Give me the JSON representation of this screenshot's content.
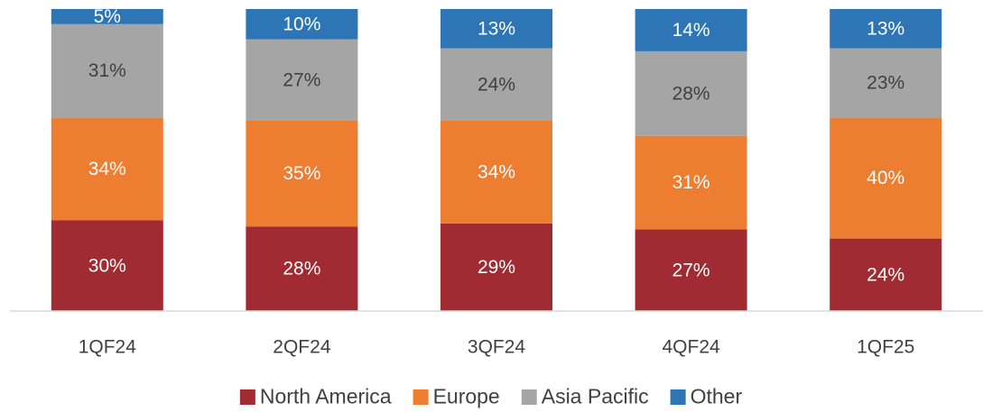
{
  "chart_data": {
    "type": "bar",
    "stacked": true,
    "categories": [
      "1QF24",
      "2QF24",
      "3QF24",
      "4QF24",
      "1QF25"
    ],
    "series": [
      {
        "name": "North America",
        "color": "#A02B33",
        "values": [
          30,
          28,
          29,
          27,
          24
        ],
        "value_labels": [
          "30%",
          "28%",
          "29%",
          "27%",
          "24%"
        ]
      },
      {
        "name": "Europe",
        "color": "#ED7D31",
        "values": [
          34,
          35,
          34,
          31,
          40
        ],
        "value_labels": [
          "34%",
          "35%",
          "34%",
          "31%",
          "40%"
        ]
      },
      {
        "name": "Asia Pacific",
        "color": "#A5A5A5",
        "values": [
          31,
          27,
          24,
          28,
          23
        ],
        "value_labels": [
          "31%",
          "27%",
          "24%",
          "28%",
          "23%"
        ]
      },
      {
        "name": "Other",
        "color": "#2E75B6",
        "values": [
          5,
          10,
          13,
          14,
          13
        ],
        "value_labels": [
          "5%",
          "10%",
          "13%",
          "14%",
          "13%"
        ]
      }
    ],
    "ylim": [
      0,
      100
    ],
    "legend": "bottom"
  }
}
